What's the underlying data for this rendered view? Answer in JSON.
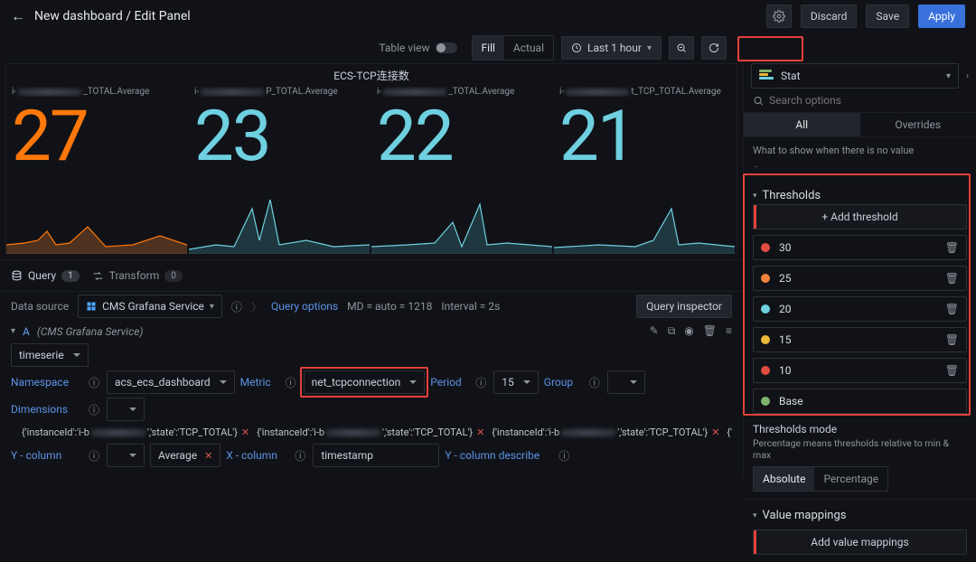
{
  "header": {
    "title": "New dashboard / Edit Panel",
    "discard": "Discard",
    "save": "Save",
    "apply": "Apply"
  },
  "toolbar": {
    "tableView": "Table view",
    "fill": "Fill",
    "actual": "Actual",
    "timeRange": "Last 1 hour"
  },
  "viz": {
    "name": "Stat"
  },
  "search": {
    "placeholder": "Search options"
  },
  "tabs": {
    "all": "All",
    "overrides": "Overrides"
  },
  "noValue": {
    "label": "What to show when there is no value",
    "value": "-"
  },
  "thresholds": {
    "title": "Thresholds",
    "add": "+  Add threshold",
    "items": [
      {
        "color": "#e24d42",
        "value": "30"
      },
      {
        "color": "#ef843c",
        "value": "25"
      },
      {
        "color": "#6ed0e0",
        "value": "20"
      },
      {
        "color": "#eab839",
        "value": "15"
      },
      {
        "color": "#e24d42",
        "value": "10"
      },
      {
        "color": "#7eb26d",
        "value": "Base"
      }
    ],
    "modeTitle": "Thresholds mode",
    "modeDesc": "Percentage means thresholds relative to min & max",
    "absolute": "Absolute",
    "percentage": "Percentage"
  },
  "valueMappings": {
    "title": "Value mappings",
    "add": "Add value mappings"
  },
  "panel": {
    "title": "ECS-TCP连接数",
    "stats": [
      {
        "label": "_TOTAL.Average",
        "value": "27",
        "color": "#ff780a",
        "spark": "#bf6c2f"
      },
      {
        "label": "P_TOTAL.Average",
        "value": "23",
        "color": "#6ed0e0",
        "spark": "#3a7e88"
      },
      {
        "label": "_TOTAL.Average",
        "value": "22",
        "color": "#6ed0e0",
        "spark": "#3a7e88"
      },
      {
        "label": "t_TCP_TOTAL.Average",
        "value": "21",
        "color": "#6ed0e0",
        "spark": "#3a7e88"
      }
    ]
  },
  "query": {
    "queryTab": "Query",
    "queryCount": "1",
    "transformTab": "Transform",
    "transformCount": "0",
    "dsLabel": "Data source",
    "dsName": "CMS Grafana Service",
    "options": "Query options",
    "md": "MD = auto = 1218",
    "interval": "Interval = 2s",
    "inspector": "Query inspector",
    "refId": "A",
    "refSvc": "(CMS Grafana Service)",
    "type": "timeserie",
    "nsLabel": "Namespace",
    "ns": "acs_ecs_dashboard",
    "metricLabel": "Metric",
    "metric": "net_tcpconnection",
    "periodLabel": "Period",
    "period": "15",
    "groupLabel": "Group",
    "dimLabel": "Dimensions",
    "ycolLabel": "Y - column",
    "ycol": "Average",
    "xcolLabel": "X - column",
    "xcol": "timestamp",
    "ydescLabel": "Y - column describe",
    "inst": [
      "{'instanceId':'i-b",
      "','state':'TCP_TOTAL'}",
      "{'instanceId':'i-b",
      "','state':'TCP_TOTAL'}",
      "{'instanceId':'i-b",
      "','state':'TCP_TOTAL'}",
      "{'instanceId':'i-bp1"
    ]
  }
}
